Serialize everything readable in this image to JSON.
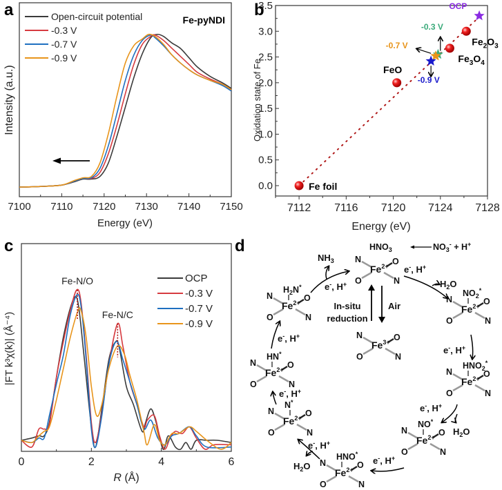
{
  "panels": {
    "a": "a",
    "b": "b",
    "c": "c",
    "d": "d"
  },
  "chart_data": [
    {
      "id": "a",
      "type": "line",
      "title": "Fe-pyNDI",
      "xlabel": "Energy (eV)",
      "ylabel": "Intensity (a.u.)",
      "xlim": [
        7100,
        7150
      ],
      "ylim": [
        0,
        1.35
      ],
      "xticks": [
        "7100",
        "7110",
        "7120",
        "7130",
        "7140",
        "7150"
      ],
      "legend_position": "top-left",
      "annotation": "arrow pointing to lower energy",
      "series": [
        {
          "name": "Open-circuit potential",
          "color": "#3a3a3a",
          "x": [
            7100,
            7105,
            7110,
            7113,
            7115,
            7117,
            7119,
            7121,
            7123,
            7125,
            7127,
            7129,
            7131,
            7132.5,
            7134,
            7136,
            7138,
            7140,
            7142,
            7145,
            7148,
            7150
          ],
          "y": [
            0.02,
            0.025,
            0.035,
            0.06,
            0.08,
            0.08,
            0.1,
            0.2,
            0.4,
            0.62,
            0.84,
            1.02,
            1.14,
            1.165,
            1.15,
            1.1,
            1.06,
            0.99,
            0.92,
            0.85,
            0.8,
            0.76
          ]
        },
        {
          "name": "-0.3 V",
          "color": "#d63a3f",
          "x": [
            7100,
            7105,
            7110,
            7113,
            7115,
            7117,
            7119,
            7121,
            7123,
            7125,
            7127,
            7129,
            7131,
            7132,
            7134,
            7136,
            7138,
            7140,
            7142,
            7145,
            7148,
            7150
          ],
          "y": [
            0.02,
            0.025,
            0.035,
            0.065,
            0.085,
            0.085,
            0.13,
            0.27,
            0.48,
            0.72,
            0.94,
            1.09,
            1.15,
            1.16,
            1.12,
            1.06,
            1.0,
            0.94,
            0.88,
            0.83,
            0.79,
            0.75
          ]
        },
        {
          "name": "-0.7 V",
          "color": "#1e6fc0",
          "x": [
            7100,
            7105,
            7110,
            7113,
            7115,
            7117,
            7119,
            7121,
            7123,
            7125,
            7127,
            7129,
            7131,
            7132,
            7134,
            7136,
            7138,
            7140,
            7142,
            7145,
            7148,
            7150
          ],
          "y": [
            0.02,
            0.025,
            0.035,
            0.065,
            0.085,
            0.09,
            0.16,
            0.33,
            0.57,
            0.82,
            1.01,
            1.12,
            1.16,
            1.14,
            1.08,
            1.01,
            0.95,
            0.9,
            0.86,
            0.82,
            0.78,
            0.74
          ]
        },
        {
          "name": "-0.9 V",
          "color": "#e8941a",
          "x": [
            7100,
            7105,
            7110,
            7113,
            7115,
            7117,
            7119,
            7121,
            7123,
            7125,
            7127,
            7129,
            7130.5,
            7132,
            7134,
            7136,
            7138,
            7140,
            7142,
            7145,
            7148,
            7150
          ],
          "y": [
            0.02,
            0.025,
            0.035,
            0.07,
            0.09,
            0.1,
            0.2,
            0.42,
            0.7,
            0.95,
            1.08,
            1.13,
            1.165,
            1.15,
            1.09,
            1.01,
            0.95,
            0.9,
            0.86,
            0.82,
            0.79,
            0.75
          ]
        }
      ]
    },
    {
      "id": "b",
      "type": "scatter",
      "xlabel": "Energy (eV)",
      "ylabel": "Oxidation state of Fe",
      "xlim": [
        7110,
        7128
      ],
      "ylim": [
        -0.2,
        3.5
      ],
      "xticks": [
        "7112",
        "7116",
        "7120",
        "7124",
        "7128"
      ],
      "yticks": [
        "0.0",
        "0.5",
        "1.0",
        "1.5",
        "2.0",
        "2.5",
        "3.0",
        "3.5"
      ],
      "fit_line": {
        "x": [
          7112,
          7127.4
        ],
        "y": [
          0.0,
          3.3
        ],
        "style": "dotted",
        "color": "#b01818"
      },
      "references": [
        {
          "label": "Fe foil",
          "x": 7112.0,
          "y": 0.0
        },
        {
          "label": "FeO",
          "x": 7120.3,
          "y": 2.0
        },
        {
          "label": "Fe3O4",
          "label_main": "Fe",
          "sub1": "3",
          "mid": "O",
          "sub2": "4",
          "x": 7124.8,
          "y": 2.67
        },
        {
          "label": "Fe2O3",
          "label_main": "Fe",
          "sub1": "2",
          "mid": "O",
          "sub2": "3",
          "x": 7126.2,
          "y": 3.0
        }
      ],
      "samples": [
        {
          "label": "OCP",
          "x": 7127.3,
          "y": 3.3,
          "color": "#8a2be2"
        },
        {
          "label": "-0.3 V",
          "x": 7123.8,
          "y": 2.55,
          "color": "#3aaa7a"
        },
        {
          "label": "-0.7 V",
          "x": 7123.6,
          "y": 2.52,
          "color": "#e8941a"
        },
        {
          "label": "-0.9 V",
          "x": 7123.2,
          "y": 2.42,
          "color": "#1a1acc"
        }
      ]
    },
    {
      "id": "c",
      "type": "line",
      "xlabel_italic": "R",
      "xlabel_rest": " (Å)",
      "ylabel": "|FT k³χ(k)| (Å⁻⁴)",
      "xlim": [
        0,
        6
      ],
      "ylim": [
        0,
        1.0
      ],
      "xticks": [
        "0",
        "2",
        "4",
        "6"
      ],
      "legend_position": "top-right",
      "annotations": [
        {
          "text": "Fe-N/O",
          "x": 1.6,
          "y_top": 0.71,
          "y_bottom": 0.58
        },
        {
          "text": "Fe-N/C",
          "x": 2.75,
          "y_top": 0.56,
          "y_bottom": 0.41
        }
      ],
      "series": [
        {
          "name": "OCP",
          "color": "#3a3a3a",
          "x": [
            0,
            0.3,
            0.5,
            0.65,
            0.8,
            1.0,
            1.2,
            1.4,
            1.55,
            1.65,
            1.8,
            2.0,
            2.12,
            2.3,
            2.5,
            2.7,
            2.8,
            3.0,
            3.2,
            3.45,
            3.55,
            3.7,
            3.85,
            4.05,
            4.2,
            4.4,
            4.55,
            4.7,
            4.85,
            5.0,
            5.3,
            5.6,
            6.0
          ],
          "y": [
            0.04,
            0.05,
            0.06,
            0.06,
            0.12,
            0.32,
            0.5,
            0.63,
            0.68,
            0.62,
            0.4,
            0.1,
            0.01,
            0.18,
            0.4,
            0.48,
            0.45,
            0.28,
            0.2,
            0.08,
            0.12,
            0.18,
            0.12,
            0.0,
            0.06,
            0.01,
            0.0,
            0.03,
            0.0,
            0.04,
            0.04,
            0.04,
            0.03
          ]
        },
        {
          "name": "-0.3 V",
          "color": "#d63a3f",
          "x": [
            0,
            0.3,
            0.5,
            0.65,
            0.8,
            1.0,
            1.2,
            1.4,
            1.58,
            1.7,
            1.85,
            2.0,
            2.12,
            2.3,
            2.5,
            2.75,
            2.9,
            3.1,
            3.3,
            3.5,
            3.6,
            3.8,
            3.95,
            4.1,
            4.25,
            4.4,
            4.6,
            4.8,
            5.0,
            5.25,
            5.5,
            6.0
          ],
          "y": [
            0.04,
            0.01,
            0.09,
            0.09,
            0.11,
            0.32,
            0.48,
            0.62,
            0.71,
            0.66,
            0.42,
            0.12,
            0.03,
            0.16,
            0.38,
            0.56,
            0.46,
            0.3,
            0.2,
            0.1,
            0.13,
            0.15,
            0.06,
            0.0,
            0.05,
            0.08,
            0.07,
            0.1,
            0.05,
            0.0,
            0.02,
            0.02
          ]
        },
        {
          "name": "-0.7 V",
          "color": "#1e6fc0",
          "x": [
            0,
            0.3,
            0.5,
            0.65,
            0.8,
            1.0,
            1.2,
            1.4,
            1.6,
            1.72,
            1.85,
            2.0,
            2.12,
            2.3,
            2.5,
            2.72,
            2.9,
            3.1,
            3.3,
            3.5,
            3.7,
            3.9,
            4.1,
            4.3,
            4.5,
            4.8,
            5.0,
            5.3,
            6.0
          ],
          "y": [
            0.04,
            0.03,
            0.05,
            0.05,
            0.15,
            0.29,
            0.42,
            0.6,
            0.69,
            0.62,
            0.4,
            0.09,
            0.01,
            0.15,
            0.38,
            0.48,
            0.4,
            0.3,
            0.2,
            0.09,
            0.13,
            0.05,
            0.02,
            0.06,
            0.07,
            0.1,
            0.06,
            0.01,
            0.01
          ]
        },
        {
          "name": "-0.9 V",
          "color": "#e8941a",
          "x": [
            0,
            0.3,
            0.5,
            0.65,
            0.8,
            1.0,
            1.2,
            1.4,
            1.6,
            1.7,
            1.85,
            2.0,
            2.15,
            2.3,
            2.5,
            2.75,
            2.95,
            3.1,
            3.3,
            3.5,
            3.6,
            3.8,
            3.95,
            4.1,
            4.3,
            4.5,
            4.8,
            5.0,
            5.3,
            5.7,
            6.0
          ],
          "y": [
            0.04,
            0.03,
            0.06,
            0.08,
            0.1,
            0.22,
            0.36,
            0.5,
            0.61,
            0.62,
            0.5,
            0.28,
            0.15,
            0.2,
            0.36,
            0.46,
            0.42,
            0.33,
            0.22,
            0.08,
            0.02,
            0.11,
            0.04,
            0.02,
            0.07,
            0.07,
            0.1,
            0.08,
            0.04,
            0.0,
            0.03
          ]
        }
      ]
    }
  ],
  "diagram_d": {
    "top_reaction": {
      "left": "HNO",
      "left_sub": "3",
      "right": "NO",
      "right_sub": "3",
      "right_sup": "-",
      "right_tail": " + H",
      "right_tail_sup": "+"
    },
    "species": [
      {
        "id": "center-fe2",
        "fe": "Fe",
        "charge": "2+",
        "ligand": ""
      },
      {
        "id": "fe3",
        "fe": "Fe",
        "charge": "3+",
        "ligand": ""
      },
      {
        "id": "no2",
        "fe": "Fe",
        "charge": "2+",
        "ligand": "NO",
        "ligand_sub": "2",
        "ligand_sup": "*"
      },
      {
        "id": "hno2",
        "fe": "Fe",
        "charge": "2+",
        "ligand": "HNO",
        "ligand_sub": "2",
        "ligand_sup": "*"
      },
      {
        "id": "no",
        "fe": "Fe",
        "charge": "2+",
        "ligand": "NO",
        "ligand_sub": "",
        "ligand_sup": "*"
      },
      {
        "id": "hno",
        "fe": "Fe",
        "charge": "2+",
        "ligand": "HNO",
        "ligand_sub": "",
        "ligand_sup": "*"
      },
      {
        "id": "n",
        "fe": "Fe",
        "charge": "2+",
        "ligand": "N",
        "ligand_sub": "",
        "ligand_sup": "*"
      },
      {
        "id": "hn",
        "fe": "Fe",
        "charge": "2+",
        "ligand": "HN",
        "ligand_sub": "",
        "ligand_sup": "*"
      },
      {
        "id": "h2n",
        "fe": "Fe",
        "charge": "2+",
        "ligand": "H",
        "ligand_sub": "2",
        "ligand_tail": "N",
        "ligand_sup": "*"
      }
    ],
    "atoms": {
      "n": "N",
      "o": "O"
    },
    "step_label": {
      "e": "e",
      "e_sup": "-",
      "h": ", H",
      "h_sup": "+"
    },
    "products": {
      "nh3": "NH",
      "nh3_sub": "3",
      "h2o_h": "H",
      "h2o_sub": "2",
      "h2o_o": "O"
    },
    "in_situ": [
      "In-situ",
      "reduction"
    ],
    "air": "Air",
    "red_color": "#d4191c"
  }
}
